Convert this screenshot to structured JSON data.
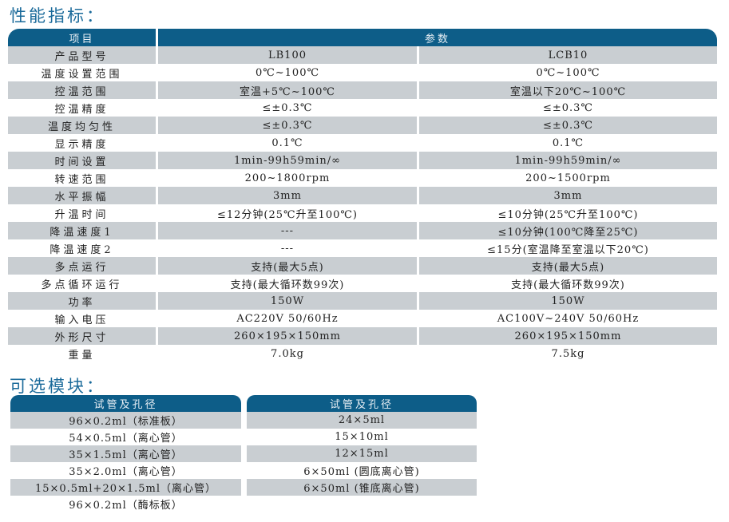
{
  "spec_title": "性能指标：",
  "spec_header": {
    "item": "项目",
    "params": "参数"
  },
  "spec_rows": [
    [
      "产品型号",
      "LB100",
      "LCB10"
    ],
    [
      "温度设置范围",
      "0℃~100℃",
      "0℃~100℃"
    ],
    [
      "控温范围",
      "室温+5℃~100℃",
      "室温以下20℃~100℃"
    ],
    [
      "控温精度",
      "≤±0.3℃",
      "≤±0.3℃"
    ],
    [
      "温度均匀性",
      "≤±0.3℃",
      "≤±0.3℃"
    ],
    [
      "显示精度",
      "0.1℃",
      "0.1℃"
    ],
    [
      "时间设置",
      "1min-99h59min/∞",
      "1min-99h59min/∞"
    ],
    [
      "转速范围",
      "200~1800rpm",
      "200~1500rpm"
    ],
    [
      "水平振幅",
      "3mm",
      "3mm"
    ],
    [
      "升温时间",
      "≤12分钟(25℃升至100℃)",
      "≤10分钟(25℃升至100℃)"
    ],
    [
      "降温速度1",
      "---",
      "≤10分钟(100℃降至25℃)"
    ],
    [
      "降温速度2",
      "---",
      "≤15分(室温降至室温以下20℃)"
    ],
    [
      "多点运行",
      "支持(最大5点)",
      "支持(最大5点)"
    ],
    [
      "多点循环运行",
      "支持(最大循环数99次)",
      "支持(最大循环数99次)"
    ],
    [
      "功率",
      "150W",
      "150W"
    ],
    [
      "输入电压",
      "AC220V 50/60Hz",
      "AC100V~240V 50/60Hz"
    ],
    [
      "外形尺寸",
      "260×195×150mm",
      "260×195×150mm"
    ],
    [
      "重量",
      "7.0kg",
      "7.5kg"
    ]
  ],
  "modules_title": "可选模块：",
  "modules_left": {
    "header": "试管及孔径",
    "items": [
      "96×0.2ml（标准板）",
      "54×0.5ml（离心管）",
      "35×1.5ml（离心管）",
      "35×2.0ml（离心管）",
      "15×0.5ml+20×1.5ml（离心管）",
      "96×0.2ml（酶标板）"
    ]
  },
  "modules_right": {
    "header": "试管及孔径",
    "items": [
      "24×5ml",
      "15×10ml",
      "12×15ml",
      "6×50ml (圆底离心管)",
      "6×50ml (锥底离心管)"
    ]
  },
  "colors": {
    "header": "#0d5d88",
    "stripe": "#c9ced2",
    "title": "#1a6a9a"
  }
}
